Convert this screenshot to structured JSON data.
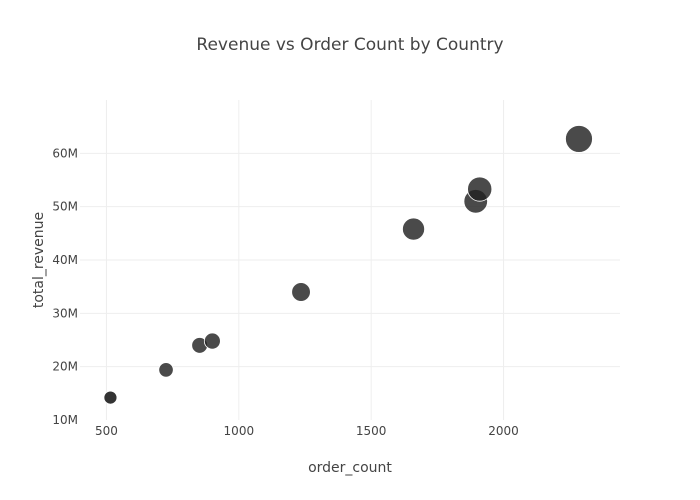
{
  "chart_data": {
    "type": "scatter",
    "title": "Revenue vs Order Count by Country",
    "xlabel": "order_count",
    "ylabel": "total_revenue",
    "xlim": [
      400,
      2440
    ],
    "ylim": [
      10000000,
      70000000
    ],
    "x_ticks": [
      500,
      1000,
      1500,
      2000
    ],
    "x_tick_labels": [
      "500",
      "1000",
      "1500",
      "2000"
    ],
    "y_ticks": [
      10000000,
      20000000,
      30000000,
      40000000,
      50000000,
      60000000
    ],
    "y_tick_labels": [
      "10M",
      "20M",
      "30M",
      "40M",
      "50M",
      "60M"
    ],
    "grid": true,
    "marker_color": "#222222",
    "points": [
      {
        "x": 515,
        "y": 14200000
      },
      {
        "x": 725,
        "y": 19400000
      },
      {
        "x": 852,
        "y": 24000000
      },
      {
        "x": 900,
        "y": 24800000
      },
      {
        "x": 1235,
        "y": 34000000
      },
      {
        "x": 1660,
        "y": 45800000
      },
      {
        "x": 1895,
        "y": 51000000
      },
      {
        "x": 1910,
        "y": 53300000
      },
      {
        "x": 2285,
        "y": 62700000
      }
    ]
  }
}
